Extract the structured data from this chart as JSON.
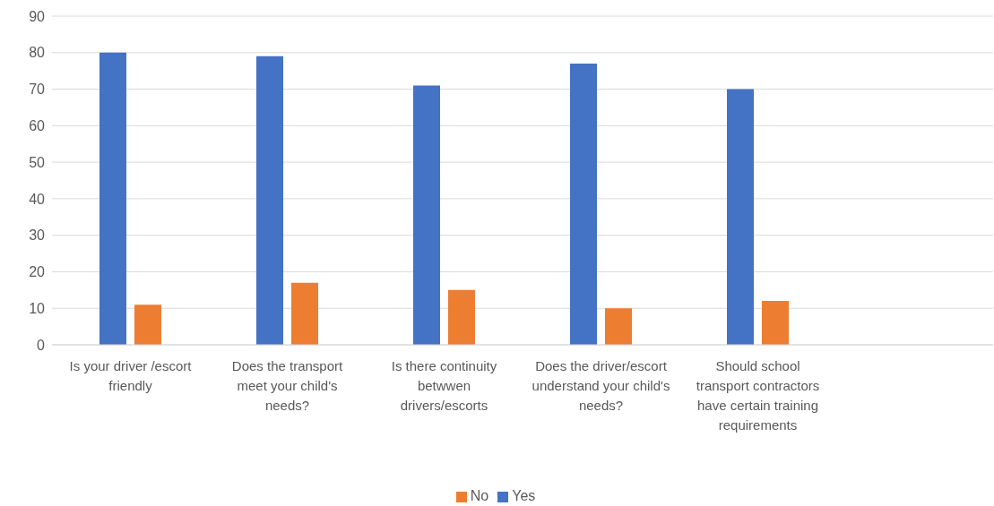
{
  "chart_data": {
    "type": "bar",
    "categories": [
      "Is your driver /escort friendly",
      "Does the transport meet your child's needs?",
      "Is there continuity betwwen drivers/escorts",
      "Does the driver/escort understand your child's needs?",
      "Should school transport contractors have certain training requirements",
      null
    ],
    "series": [
      {
        "name": "Yes",
        "color": "#4472c4",
        "values": [
          80,
          79,
          71,
          77,
          70,
          null
        ]
      },
      {
        "name": "No",
        "color": "#ed7d31",
        "values": [
          11,
          17,
          15,
          10,
          12,
          null
        ]
      }
    ],
    "ylim": [
      0,
      90
    ],
    "yticks": [
      0,
      10,
      20,
      30,
      40,
      50,
      60,
      70,
      80,
      90
    ],
    "grid": "y",
    "legend": "bottom"
  }
}
